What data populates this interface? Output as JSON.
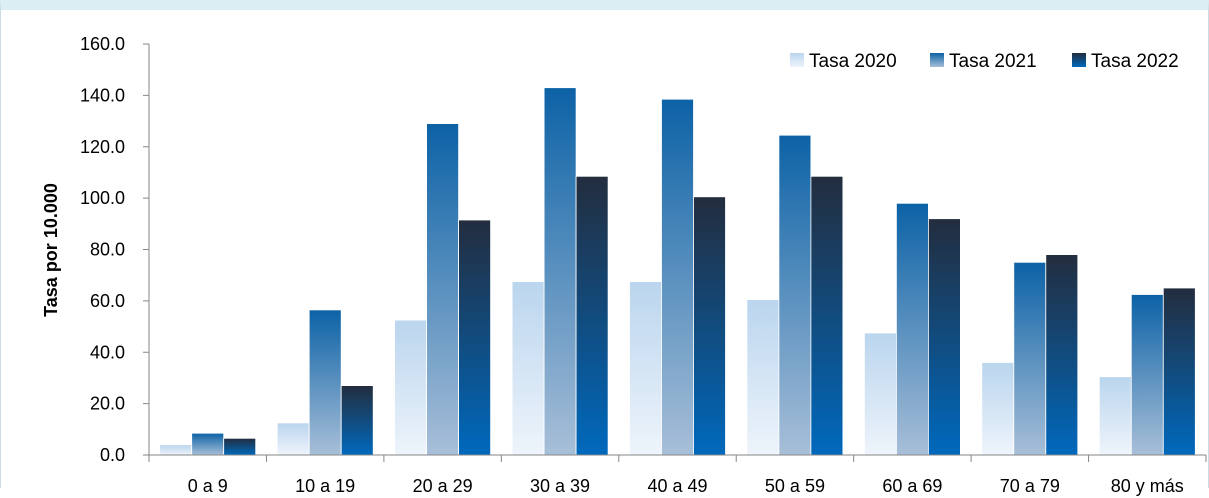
{
  "chart_data": {
    "type": "bar",
    "ylabel": "Tasa por 10.000",
    "xlabel": "",
    "ylim": [
      0,
      160
    ],
    "ytick_step": 20,
    "ytick_labels": [
      "0.0",
      "20.0",
      "40.0",
      "60.0",
      "80.0",
      "100.0",
      "120.0",
      "140.0",
      "160.0"
    ],
    "categories": [
      "0 a 9",
      "10 a 19",
      "20 a 29",
      "30 a 39",
      "40 a 49",
      "50 a 59",
      "60 a 69",
      "70 a 79",
      "80 y más"
    ],
    "series": [
      {
        "name": "Tasa 2020",
        "values": [
          4.0,
          12.5,
          52.5,
          67.5,
          67.5,
          60.5,
          47.5,
          36.0,
          30.5
        ],
        "color_top": "#bad5ee",
        "color_bottom": "#eef4fb"
      },
      {
        "name": "Tasa 2021",
        "values": [
          8.5,
          56.5,
          129.0,
          143.0,
          138.5,
          124.5,
          98.0,
          75.0,
          62.5
        ],
        "color_top": "#0c62a6",
        "color_bottom": "#a8bfd8"
      },
      {
        "name": "Tasa 2022",
        "values": [
          6.5,
          27.0,
          91.5,
          108.5,
          100.5,
          108.5,
          92.0,
          78.0,
          65.0
        ],
        "color_top": "#232d3e",
        "color_bottom": "#0069bd"
      }
    ],
    "grid": false,
    "legend_position": "top-right"
  }
}
